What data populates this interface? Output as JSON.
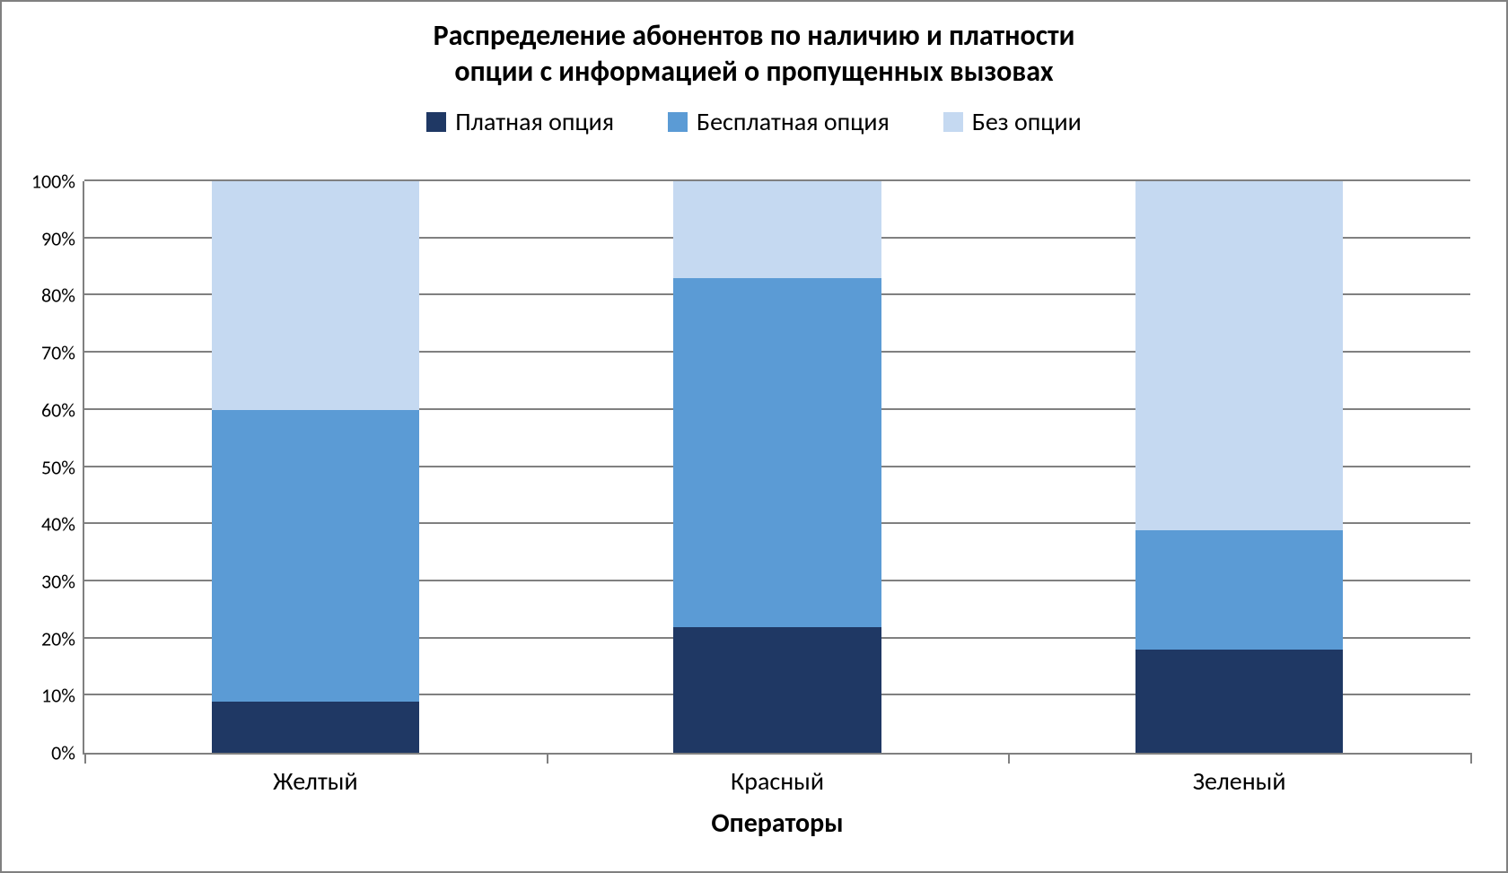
{
  "chart": {
    "type": "stacked-bar-100",
    "title_line1": "Распределение абонентов по наличию и платности",
    "title_line2": "опции с информацией о пропущенных вызовах",
    "title_fontsize": 32,
    "title_color": "#000000",
    "legend": {
      "fontsize": 28,
      "text_color": "#000000",
      "items": [
        {
          "label": "Платная опция",
          "color": "#1F3864"
        },
        {
          "label": "Бесплатная опция",
          "color": "#5B9BD5"
        },
        {
          "label": "Без опции",
          "color": "#C5D9F1"
        }
      ]
    },
    "xaxis": {
      "title": "Операторы",
      "title_fontsize": 30,
      "tick_fontsize": 28,
      "color": "#000000"
    },
    "yaxis": {
      "min": 0,
      "max": 100,
      "tick_step": 10,
      "tick_labels": [
        "0%",
        "10%",
        "20%",
        "30%",
        "40%",
        "50%",
        "60%",
        "70%",
        "80%",
        "90%",
        "100%"
      ],
      "tick_fontsize": 22,
      "color": "#000000"
    },
    "plot": {
      "grid_color": "#808080",
      "axis_color": "#808080",
      "background": "#ffffff"
    },
    "bars": {
      "width_pct": 15,
      "positions_pct": [
        16.67,
        50.0,
        83.33
      ],
      "categories": [
        "Желтый",
        "Красный",
        "Зеленый"
      ],
      "series_order": [
        "paid",
        "free",
        "none"
      ],
      "series_colors": {
        "paid": "#1F3864",
        "free": "#5B9BD5",
        "none": "#C5D9F1"
      },
      "values": [
        {
          "paid": 9,
          "free": 51,
          "none": 40
        },
        {
          "paid": 22,
          "free": 61,
          "none": 17
        },
        {
          "paid": 18,
          "free": 21,
          "none": 61
        }
      ]
    },
    "frame_border_color": "#808080"
  }
}
